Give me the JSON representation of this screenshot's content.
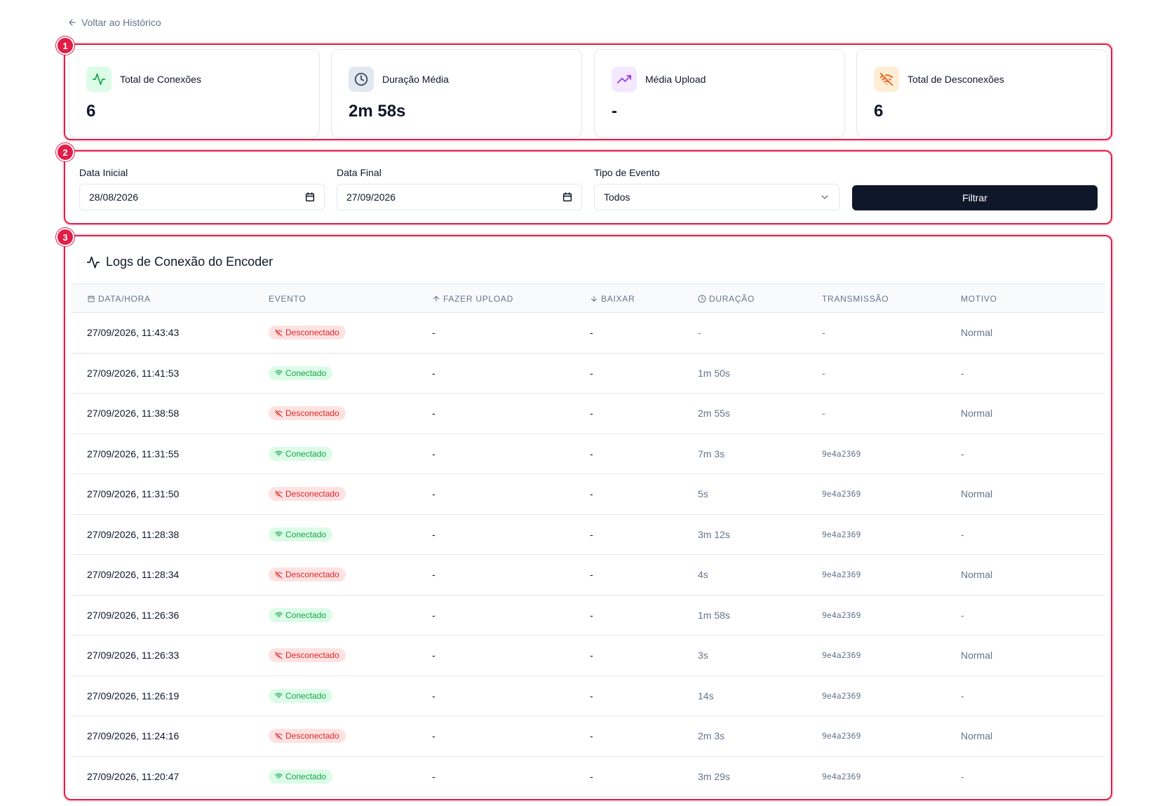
{
  "back_link": "Voltar ao Histórico",
  "markers": [
    "1",
    "2",
    "3"
  ],
  "stats": [
    {
      "label": "Total de Conexões",
      "value": "6",
      "icon": "activity-icon",
      "color": "#16a34a",
      "bg": "#dcfce7"
    },
    {
      "label": "Duração Média",
      "value": "2m 58s",
      "icon": "clock-icon",
      "color": "#334155",
      "bg": "#e2e8f0"
    },
    {
      "label": "Média Upload",
      "value": "-",
      "icon": "trending-up-icon",
      "color": "#9333ea",
      "bg": "#f3e8ff"
    },
    {
      "label": "Total de Desconexões",
      "value": "6",
      "icon": "wifi-off-icon",
      "color": "#ea580c",
      "bg": "#ffedd5"
    }
  ],
  "filters": {
    "start_label": "Data Inicial",
    "start_value": "28/08/2026",
    "end_label": "Data Final",
    "end_value": "27/09/2026",
    "type_label": "Tipo de Evento",
    "type_value": "Todos",
    "button": "Filtrar"
  },
  "logs": {
    "title": "Logs de Conexão do Encoder",
    "columns": [
      "DATA/HORA",
      "EVENTO",
      "FAZER UPLOAD",
      "BAIXAR",
      "DURAÇÃO",
      "TRANSMISSÃO",
      "MOTIVO"
    ],
    "rows": [
      {
        "date": "27/09/2026, 11:43:43",
        "event": "Desconectado",
        "status": "off",
        "upload": "-",
        "download": "-",
        "duration": "-",
        "stream": "-",
        "reason": "Normal"
      },
      {
        "date": "27/09/2026, 11:41:53",
        "event": "Conectado",
        "status": "on",
        "upload": "-",
        "download": "-",
        "duration": "1m 50s",
        "stream": "-",
        "reason": "-"
      },
      {
        "date": "27/09/2026, 11:38:58",
        "event": "Desconectado",
        "status": "off",
        "upload": "-",
        "download": "-",
        "duration": "2m 55s",
        "stream": "-",
        "reason": "Normal"
      },
      {
        "date": "27/09/2026, 11:31:55",
        "event": "Conectado",
        "status": "on",
        "upload": "-",
        "download": "-",
        "duration": "7m 3s",
        "stream": "9e4a2369",
        "reason": "-"
      },
      {
        "date": "27/09/2026, 11:31:50",
        "event": "Desconectado",
        "status": "off",
        "upload": "-",
        "download": "-",
        "duration": "5s",
        "stream": "9e4a2369",
        "reason": "Normal"
      },
      {
        "date": "27/09/2026, 11:28:38",
        "event": "Conectado",
        "status": "on",
        "upload": "-",
        "download": "-",
        "duration": "3m 12s",
        "stream": "9e4a2369",
        "reason": "-"
      },
      {
        "date": "27/09/2026, 11:28:34",
        "event": "Desconectado",
        "status": "off",
        "upload": "-",
        "download": "-",
        "duration": "4s",
        "stream": "9e4a2369",
        "reason": "Normal"
      },
      {
        "date": "27/09/2026, 11:26:36",
        "event": "Conectado",
        "status": "on",
        "upload": "-",
        "download": "-",
        "duration": "1m 58s",
        "stream": "9e4a2369",
        "reason": "-"
      },
      {
        "date": "27/09/2026, 11:26:33",
        "event": "Desconectado",
        "status": "off",
        "upload": "-",
        "download": "-",
        "duration": "3s",
        "stream": "9e4a2369",
        "reason": "Normal"
      },
      {
        "date": "27/09/2026, 11:26:19",
        "event": "Conectado",
        "status": "on",
        "upload": "-",
        "download": "-",
        "duration": "14s",
        "stream": "9e4a2369",
        "reason": "-"
      },
      {
        "date": "27/09/2026, 11:24:16",
        "event": "Desconectado",
        "status": "off",
        "upload": "-",
        "download": "-",
        "duration": "2m 3s",
        "stream": "9e4a2369",
        "reason": "Normal"
      },
      {
        "date": "27/09/2026, 11:20:47",
        "event": "Conectado",
        "status": "on",
        "upload": "-",
        "download": "-",
        "duration": "3m 29s",
        "stream": "9e4a2369",
        "reason": "-"
      }
    ]
  },
  "colors": {
    "highlight": "#e11d48",
    "primary": "#0f172a",
    "danger": "#dc2626",
    "success": "#16a34a"
  }
}
